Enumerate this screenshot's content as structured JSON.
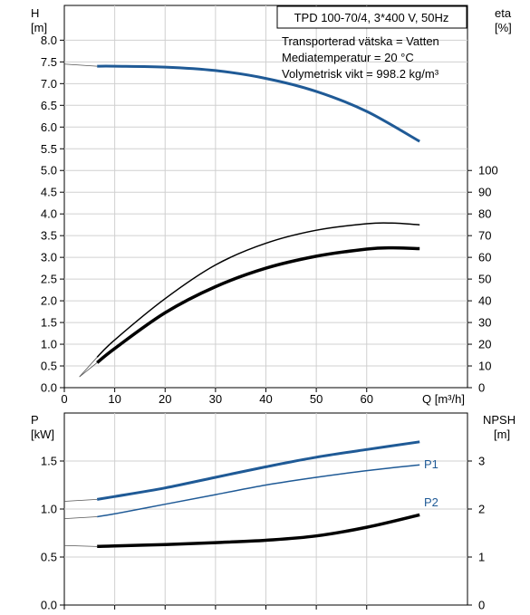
{
  "header": {
    "pump_model": "TPD 100-70/4, 3*400 V, 50Hz",
    "info_lines": [
      "Transporterad vätska = Vatten",
      "Mediatemperatur = 20 °C",
      "Volymetrisk vikt = 998.2 kg/m³"
    ]
  },
  "colors": {
    "blue": "#1f5a96",
    "black": "#000000",
    "grid": "#d0d0d0"
  },
  "chart_data": [
    {
      "type": "line",
      "panel": "upper",
      "xlabel": "Q [m³/h]",
      "xlim": [
        0,
        80
      ],
      "xticks": [
        0,
        10,
        20,
        30,
        40,
        50,
        60
      ],
      "xtick_labels": [
        "0",
        "10",
        "20",
        "30",
        "40",
        "50",
        "60"
      ],
      "left_axis": {
        "label_line1": "H",
        "label_line2": "[m]",
        "ylim": [
          0,
          8.8
        ],
        "ticks": [
          0,
          0.5,
          1,
          1.5,
          2,
          2.5,
          3,
          3.5,
          4,
          4.5,
          5,
          5.5,
          6,
          6.5,
          7,
          7.5,
          8
        ],
        "tick_labels": [
          "0.0",
          "0.5",
          "1.0",
          "1.5",
          "2.0",
          "2.5",
          "3.0",
          "3.5",
          "4.0",
          "4.5",
          "5.0",
          "5.5",
          "6.0",
          "6.5",
          "7.0",
          "7.5",
          "8.0"
        ]
      },
      "right_axis": {
        "label_line1": "eta",
        "label_line2": "[%]",
        "ylim": [
          0,
          176
        ],
        "ticks": [
          0,
          10,
          20,
          30,
          40,
          50,
          60,
          70,
          80,
          90,
          100
        ],
        "tick_labels": [
          "0",
          "10",
          "20",
          "30",
          "40",
          "50",
          "60",
          "70",
          "80",
          "90",
          "100"
        ]
      },
      "series": [
        {
          "axis": "left",
          "color": "blue",
          "width": 3,
          "x": [
            6.5,
            10,
            20,
            30,
            40,
            50,
            60,
            70.5
          ],
          "y": [
            7.4,
            7.4,
            7.38,
            7.3,
            7.12,
            6.82,
            6.36,
            5.67
          ],
          "ext_x": [
            0,
            6.5
          ],
          "ext_y": [
            7.45,
            7.4
          ]
        },
        {
          "axis": "right",
          "color": "black",
          "width": 1.5,
          "x": [
            6.5,
            10,
            20,
            30,
            40,
            50,
            60,
            65,
            70.5
          ],
          "y": [
            14,
            22,
            41,
            56.5,
            66.5,
            72.5,
            75.5,
            75.8,
            75
          ],
          "ext_x": [
            3,
            6.5
          ],
          "ext_y": [
            5,
            14
          ]
        },
        {
          "axis": "right",
          "color": "black",
          "width": 3.5,
          "x": [
            6.5,
            10,
            20,
            30,
            40,
            50,
            60,
            65,
            70.5
          ],
          "y": [
            11.5,
            18,
            34.5,
            46.5,
            55,
            60.5,
            63.8,
            64.4,
            64
          ],
          "ext_x": [
            3,
            6.5
          ],
          "ext_y": [
            5,
            11.5
          ]
        }
      ]
    },
    {
      "type": "line",
      "panel": "lower",
      "xlim": [
        0,
        80
      ],
      "xticks": [
        0,
        10,
        20,
        30,
        40,
        50,
        60
      ],
      "left_axis": {
        "label_line1": "P",
        "label_line2": "[kW]",
        "ylim": [
          0,
          2.0
        ],
        "ticks": [
          0,
          0.5,
          1.0,
          1.5
        ],
        "tick_labels": [
          "0.0",
          "0.5",
          "1.0",
          "1.5"
        ]
      },
      "right_axis": {
        "label_line1": "NPSH",
        "label_line2": "[m]",
        "ylim": [
          0,
          4.0
        ],
        "ticks": [
          0,
          1,
          2,
          3
        ],
        "tick_labels": [
          "0",
          "1",
          "2",
          "3"
        ]
      },
      "series": [
        {
          "name": "P1",
          "axis": "left",
          "color": "blue",
          "width": 3,
          "x": [
            6.5,
            10,
            20,
            30,
            40,
            50,
            60,
            70.5
          ],
          "y": [
            1.1,
            1.13,
            1.22,
            1.33,
            1.44,
            1.54,
            1.62,
            1.7
          ],
          "ext_x": [
            0,
            6.5
          ],
          "ext_y": [
            1.08,
            1.1
          ]
        },
        {
          "name": "P2",
          "axis": "left",
          "color": "blue",
          "width": 1.5,
          "x": [
            6.5,
            10,
            20,
            30,
            40,
            50,
            60,
            70.5
          ],
          "y": [
            0.92,
            0.95,
            1.05,
            1.15,
            1.25,
            1.33,
            1.4,
            1.46
          ],
          "ext_x": [
            0,
            6.5
          ],
          "ext_y": [
            0.9,
            0.92
          ]
        },
        {
          "axis": "right",
          "color": "black",
          "width": 3.5,
          "x": [
            6.5,
            10,
            20,
            30,
            40,
            50,
            60,
            70.5
          ],
          "y": [
            1.22,
            1.23,
            1.26,
            1.3,
            1.35,
            1.44,
            1.62,
            1.88
          ],
          "ext_x": [
            0,
            6.5
          ],
          "ext_y": [
            1.24,
            1.22
          ]
        }
      ]
    }
  ]
}
